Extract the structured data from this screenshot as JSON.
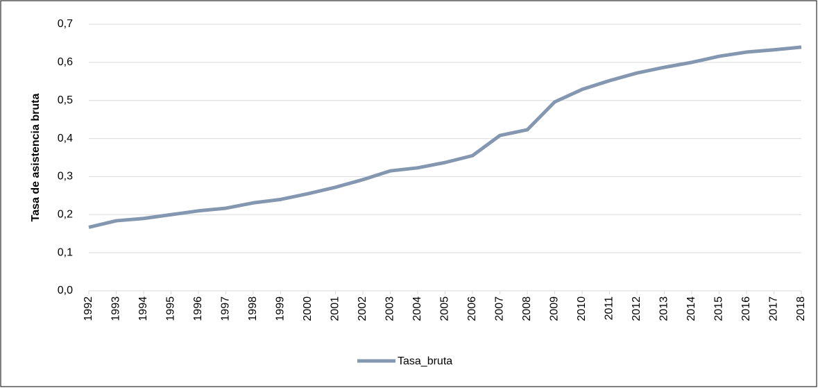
{
  "chart_data": {
    "type": "line",
    "y_label": "Tasa de asistencia bruta",
    "categories": [
      "1992",
      "1993",
      "1994",
      "1995",
      "1996",
      "1997",
      "1998",
      "1999",
      "2000",
      "2001",
      "2002",
      "2003",
      "2004",
      "2005",
      "2006",
      "2007",
      "2008",
      "2009",
      "2010",
      "2011",
      "2012",
      "2013",
      "2014",
      "2015",
      "2016",
      "2017",
      "2018"
    ],
    "series": [
      {
        "name": "Tasa_bruta",
        "color": "#8497b0",
        "values": [
          0.167,
          0.184,
          0.19,
          0.2,
          0.21,
          0.217,
          0.231,
          0.24,
          0.255,
          0.272,
          0.292,
          0.315,
          0.323,
          0.337,
          0.355,
          0.408,
          0.423,
          0.496,
          0.529,
          0.552,
          0.572,
          0.587,
          0.6,
          0.616,
          0.627,
          0.633,
          0.64
        ]
      }
    ],
    "ylim": [
      0,
      0.7
    ],
    "yticks": [
      {
        "value": 0,
        "label": "0,0"
      },
      {
        "value": 0.1,
        "label": "0,1"
      },
      {
        "value": 0.2,
        "label": "0,2"
      },
      {
        "value": 0.3,
        "label": "0,3"
      },
      {
        "value": 0.4,
        "label": "0,4"
      },
      {
        "value": 0.5,
        "label": "0,5"
      },
      {
        "value": 0.6,
        "label": "0,6"
      },
      {
        "value": 0.7,
        "label": "0,7"
      }
    ],
    "grid": true,
    "legend": "bottom"
  }
}
